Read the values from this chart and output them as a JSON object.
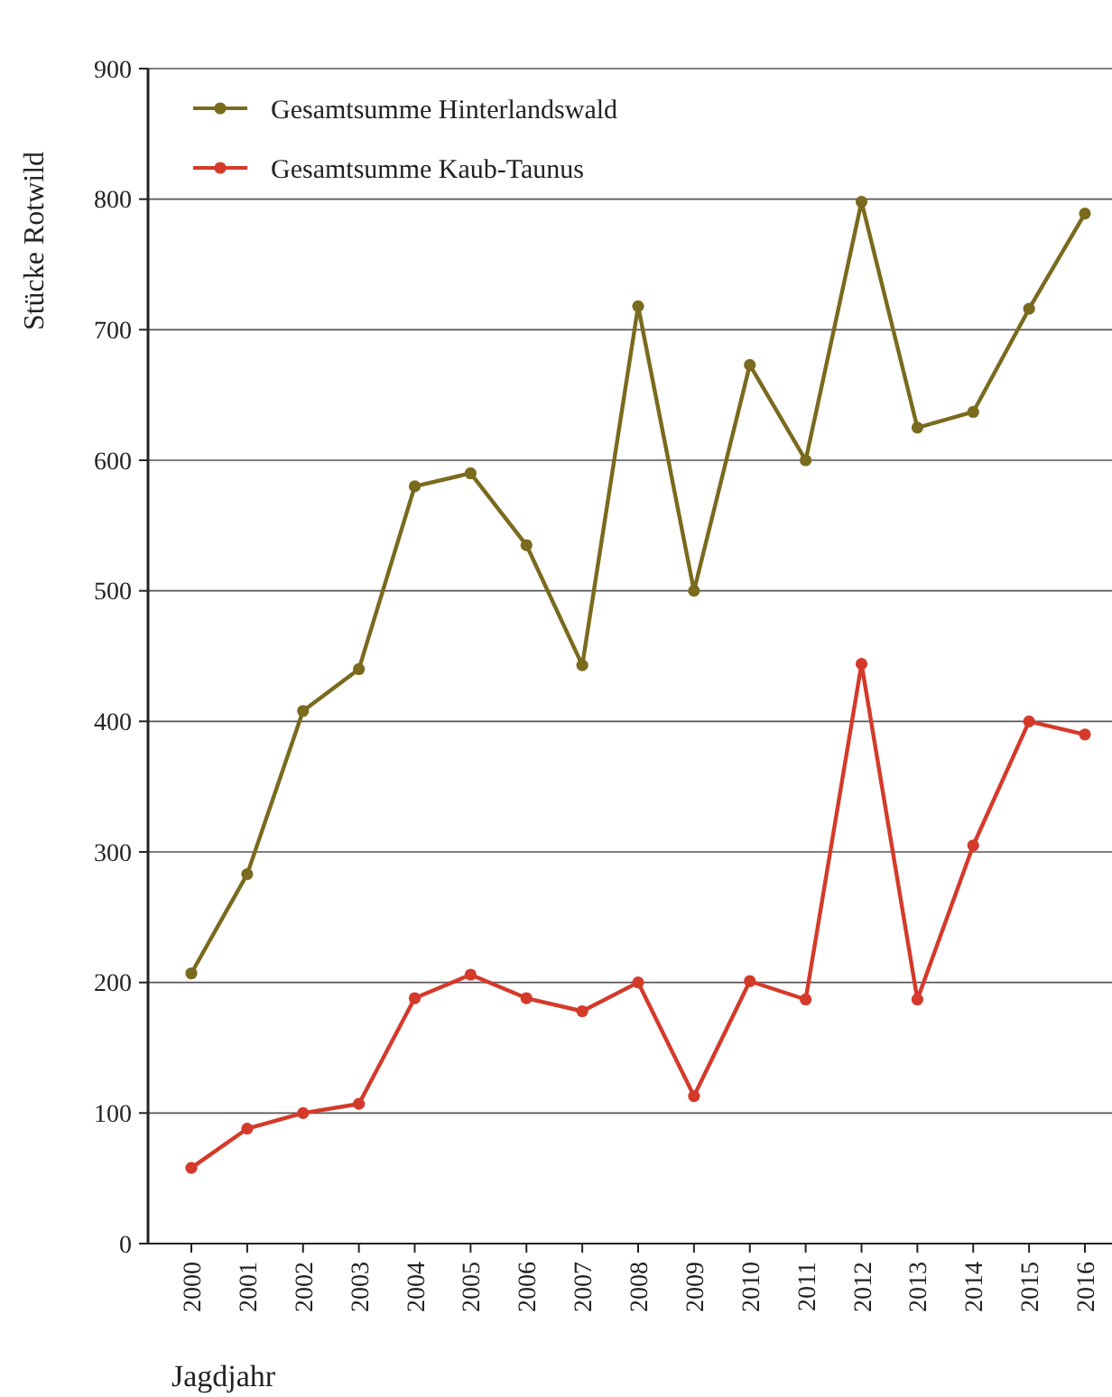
{
  "chart_data": {
    "type": "line",
    "ylabel": "Stücke Rotwild",
    "xlabel": "Jagdjahr",
    "categories": [
      "2000",
      "2001",
      "2002",
      "2003",
      "2004",
      "2005",
      "2006",
      "2007",
      "2008",
      "2009",
      "2010",
      "2011",
      "2012",
      "2013",
      "2014",
      "2015",
      "2016"
    ],
    "series": [
      {
        "name": "Gesamtsumme Hinterlandswald",
        "color": "#7a6a1e",
        "values": [
          207,
          283,
          408,
          440,
          580,
          590,
          535,
          443,
          718,
          500,
          673,
          600,
          798,
          625,
          637,
          716,
          789
        ]
      },
      {
        "name": "Gesamtsumme Kaub-Taunus",
        "color": "#d43a2a",
        "values": [
          58,
          88,
          100,
          107,
          188,
          206,
          188,
          178,
          200,
          113,
          201,
          187,
          444,
          187,
          305,
          400,
          390
        ]
      }
    ],
    "ylim": [
      0,
      900
    ],
    "yticks": [
      0,
      100,
      200,
      300,
      400,
      500,
      600,
      700,
      800,
      900
    ],
    "grid": "y",
    "legend": "top left",
    "marker": "circle",
    "line_style": "solid"
  }
}
